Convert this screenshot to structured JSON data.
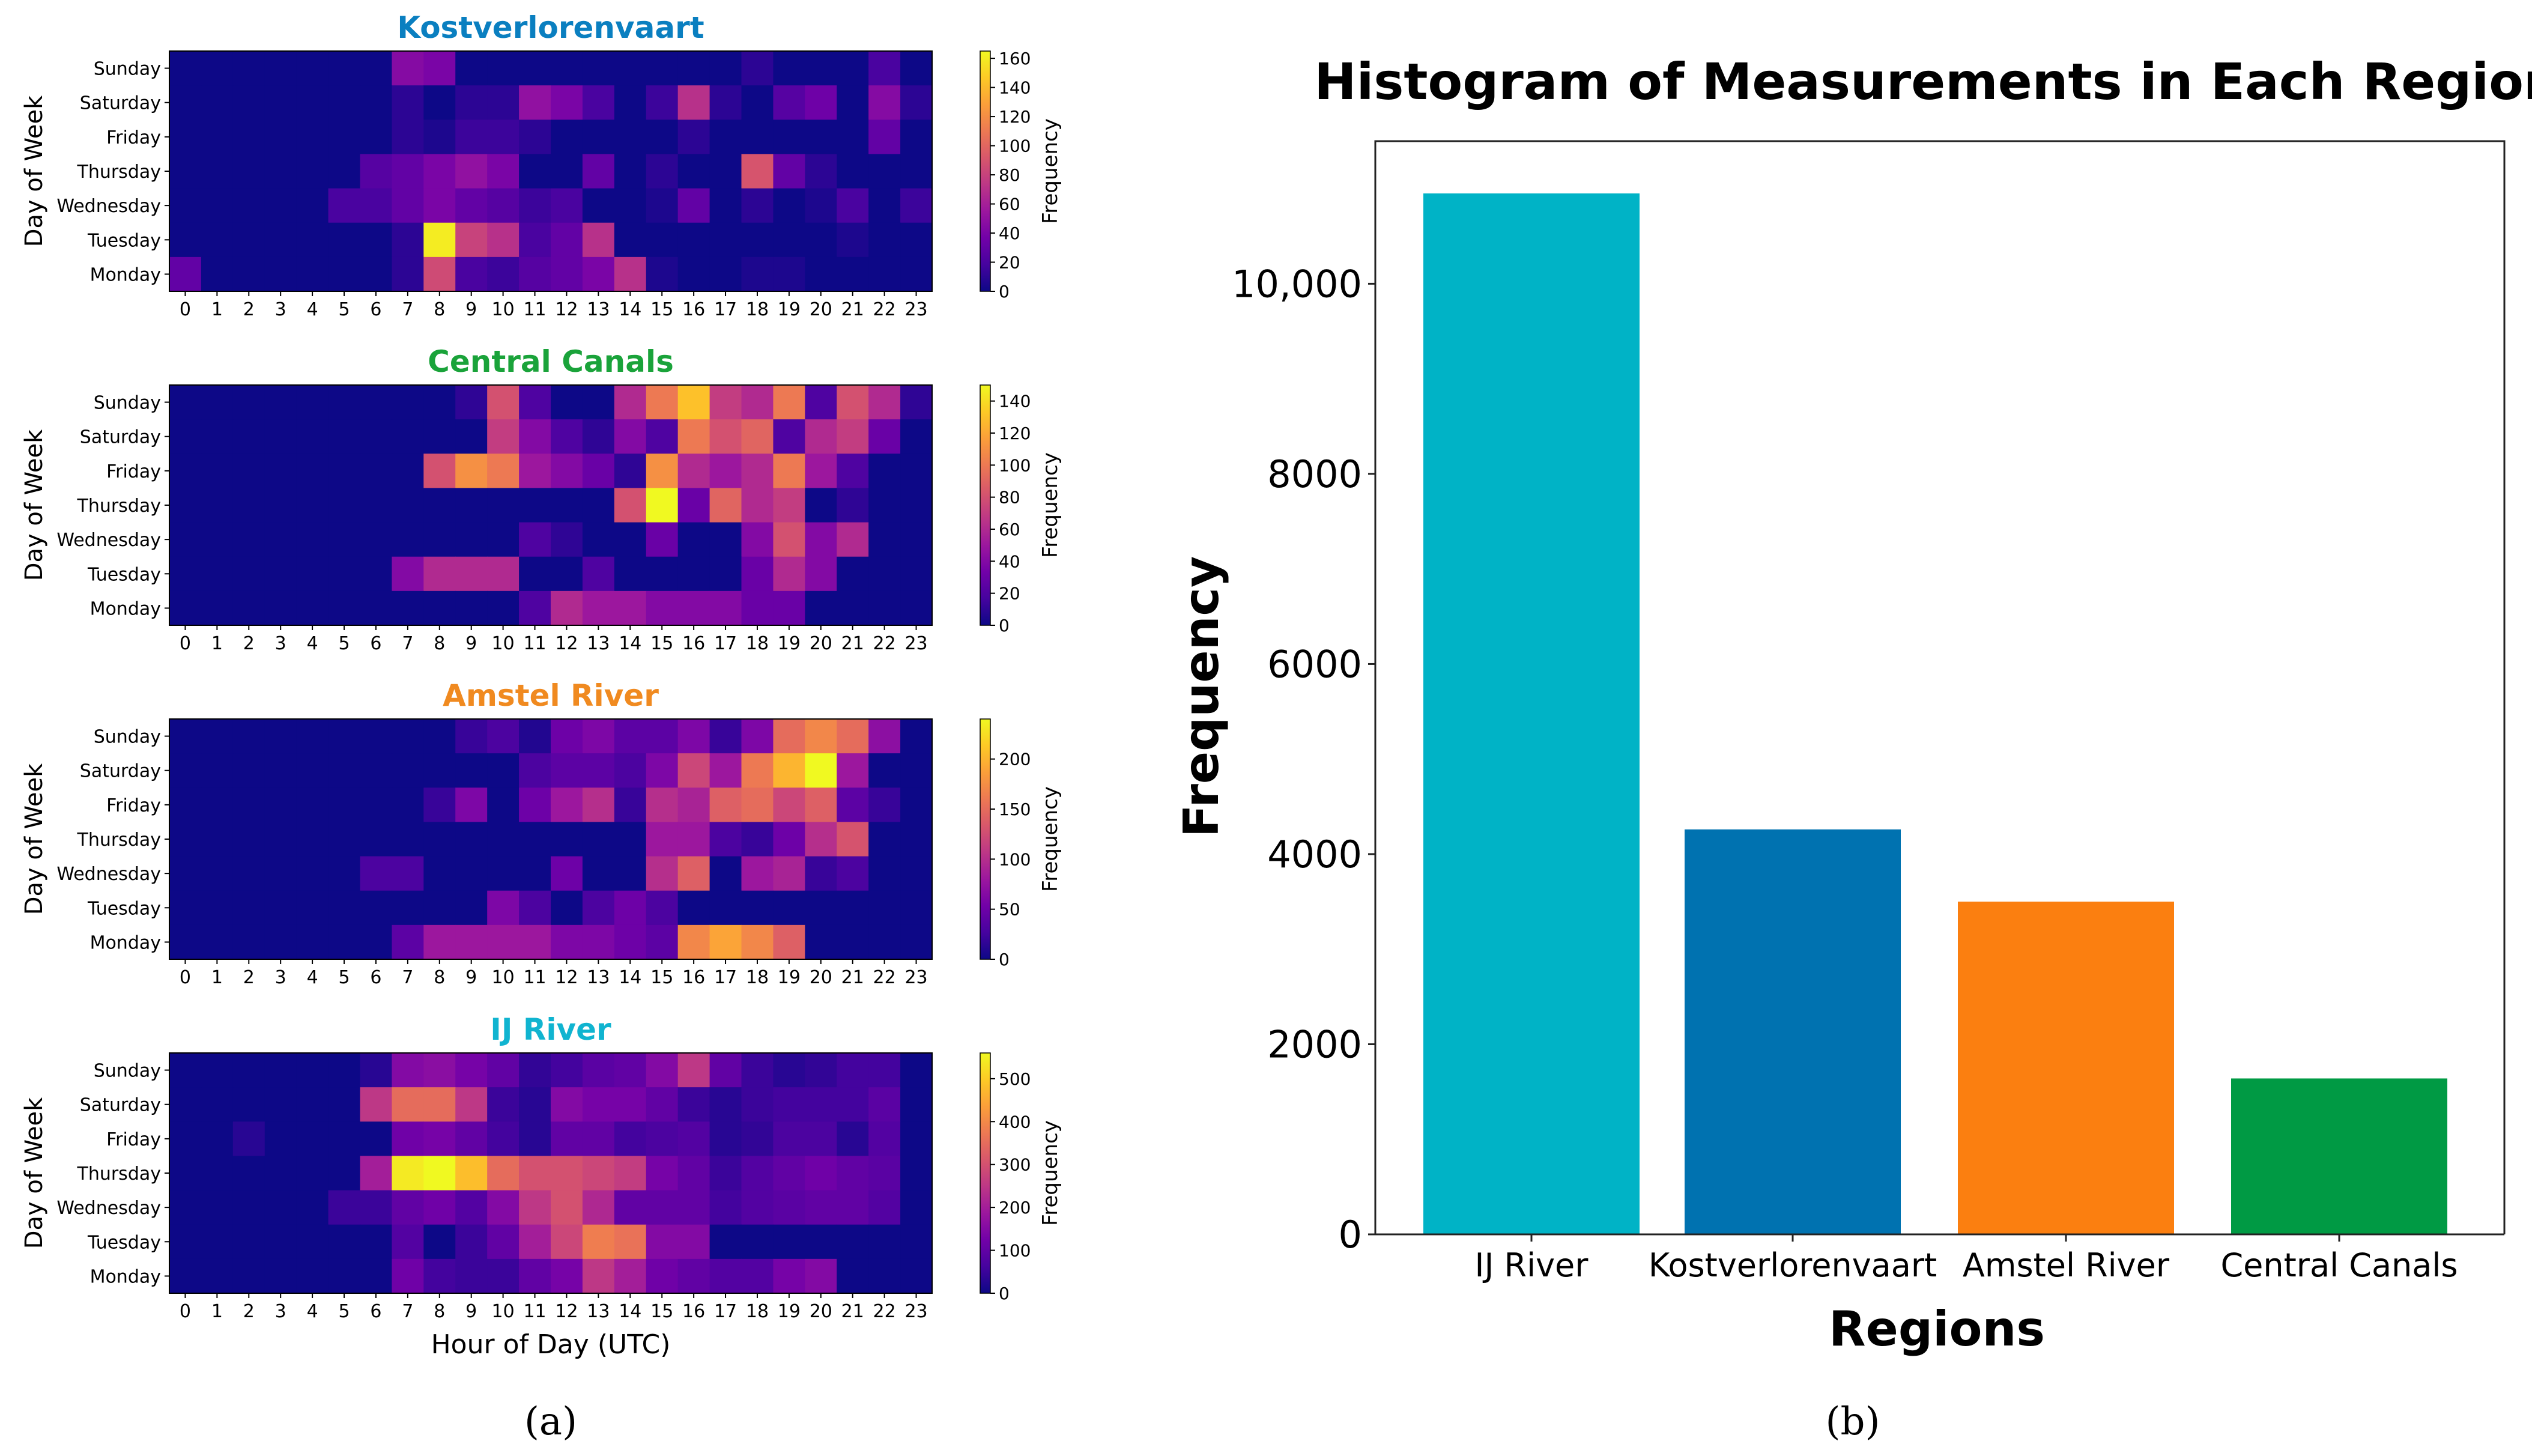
{
  "figure": {
    "captions": [
      "(a)",
      "(b)"
    ],
    "colorscale": [
      "#0d0887",
      "#46039f",
      "#7201a8",
      "#9c179e",
      "#bd3786",
      "#d8576b",
      "#ed7953",
      "#fb9f3a",
      "#fdca26",
      "#f0f921"
    ]
  },
  "panel_a": {
    "x_label": "Hour of Day (UTC)",
    "y_label": "Day of Week",
    "colorbar_label": "Frequency",
    "hours": [
      "0",
      "1",
      "2",
      "3",
      "4",
      "5",
      "6",
      "7",
      "8",
      "9",
      "10",
      "11",
      "12",
      "13",
      "14",
      "15",
      "16",
      "17",
      "18",
      "19",
      "20",
      "21",
      "22",
      "23"
    ],
    "days": [
      "Sunday",
      "Saturday",
      "Friday",
      "Thursday",
      "Wednesday",
      "Tuesday",
      "Monday"
    ]
  },
  "chart_data": [
    {
      "type": "heatmap",
      "title": "Kostverlorenvaart",
      "title_color": "#0a7fc0",
      "xlabel": "",
      "ylabel": "Day of Week",
      "colorbar_label": "Frequency",
      "zlim": [
        0,
        165
      ],
      "colorbar_ticks": [
        "0",
        "20",
        "40",
        "60",
        "80",
        "100",
        "120",
        "140",
        "160"
      ],
      "x": [
        "0",
        "1",
        "2",
        "3",
        "4",
        "5",
        "6",
        "7",
        "8",
        "9",
        "10",
        "11",
        "12",
        "13",
        "14",
        "15",
        "16",
        "17",
        "18",
        "19",
        "20",
        "21",
        "22",
        "23"
      ],
      "y": [
        "Sunday",
        "Saturday",
        "Friday",
        "Thursday",
        "Wednesday",
        "Tuesday",
        "Monday"
      ],
      "z": [
        [
          0,
          0,
          0,
          0,
          0,
          0,
          0,
          45,
          40,
          0,
          0,
          0,
          0,
          0,
          0,
          0,
          0,
          0,
          10,
          0,
          0,
          0,
          20,
          0
        ],
        [
          0,
          0,
          0,
          0,
          0,
          0,
          0,
          10,
          0,
          10,
          10,
          50,
          40,
          20,
          0,
          15,
          70,
          10,
          0,
          25,
          35,
          0,
          45,
          10
        ],
        [
          0,
          0,
          0,
          0,
          0,
          0,
          0,
          10,
          5,
          15,
          15,
          10,
          0,
          0,
          0,
          0,
          10,
          0,
          0,
          0,
          0,
          0,
          30,
          0
        ],
        [
          0,
          0,
          0,
          0,
          0,
          0,
          25,
          30,
          40,
          50,
          40,
          0,
          0,
          30,
          0,
          10,
          0,
          0,
          90,
          30,
          10,
          0,
          0,
          0
        ],
        [
          0,
          0,
          0,
          0,
          0,
          20,
          20,
          30,
          40,
          30,
          25,
          15,
          20,
          0,
          0,
          5,
          30,
          0,
          10,
          0,
          5,
          20,
          0,
          15
        ],
        [
          0,
          0,
          0,
          0,
          0,
          0,
          0,
          10,
          160,
          80,
          70,
          20,
          30,
          70,
          0,
          0,
          0,
          0,
          0,
          0,
          0,
          5,
          0,
          0
        ],
        [
          30,
          0,
          0,
          0,
          0,
          0,
          0,
          10,
          85,
          20,
          15,
          25,
          30,
          40,
          70,
          5,
          0,
          0,
          5,
          5,
          0,
          0,
          0,
          0
        ]
      ]
    },
    {
      "type": "heatmap",
      "title": "Central Canals",
      "title_color": "#1aa33a",
      "xlabel": "",
      "ylabel": "Day of Week",
      "colorbar_label": "Frequency",
      "zlim": [
        0,
        150
      ],
      "colorbar_ticks": [
        "0",
        "20",
        "40",
        "60",
        "80",
        "100",
        "120",
        "140"
      ],
      "x": [
        "0",
        "1",
        "2",
        "3",
        "4",
        "5",
        "6",
        "7",
        "8",
        "9",
        "10",
        "11",
        "12",
        "13",
        "14",
        "15",
        "16",
        "17",
        "18",
        "19",
        "20",
        "21",
        "22",
        "23"
      ],
      "y": [
        "Sunday",
        "Saturday",
        "Friday",
        "Thursday",
        "Wednesday",
        "Tuesday",
        "Monday"
      ],
      "z": [
        [
          0,
          0,
          0,
          0,
          0,
          0,
          0,
          0,
          0,
          10,
          80,
          20,
          0,
          0,
          60,
          100,
          130,
          70,
          60,
          100,
          20,
          80,
          60,
          10
        ],
        [
          0,
          0,
          0,
          0,
          0,
          0,
          0,
          0,
          0,
          0,
          70,
          40,
          20,
          10,
          40,
          20,
          100,
          80,
          90,
          20,
          60,
          70,
          30,
          0
        ],
        [
          0,
          0,
          0,
          0,
          0,
          0,
          0,
          0,
          80,
          110,
          100,
          50,
          40,
          30,
          10,
          110,
          60,
          50,
          60,
          100,
          50,
          20,
          0,
          0
        ],
        [
          0,
          0,
          0,
          0,
          0,
          0,
          0,
          0,
          0,
          0,
          0,
          0,
          0,
          0,
          80,
          150,
          30,
          90,
          60,
          70,
          0,
          10,
          0,
          0
        ],
        [
          0,
          0,
          0,
          0,
          0,
          0,
          0,
          0,
          0,
          0,
          0,
          20,
          10,
          0,
          0,
          30,
          0,
          0,
          40,
          80,
          40,
          60,
          0,
          0
        ],
        [
          0,
          0,
          0,
          0,
          0,
          0,
          0,
          40,
          60,
          60,
          60,
          0,
          0,
          20,
          0,
          0,
          0,
          0,
          30,
          60,
          40,
          0,
          0,
          0
        ],
        [
          0,
          0,
          0,
          0,
          0,
          0,
          0,
          0,
          0,
          0,
          0,
          20,
          60,
          50,
          50,
          40,
          40,
          40,
          30,
          30,
          0,
          0,
          0,
          0
        ]
      ]
    },
    {
      "type": "heatmap",
      "title": "Amstel River",
      "title_color": "#f08a20",
      "xlabel": "",
      "ylabel": "Day of Week",
      "colorbar_label": "Frequency",
      "zlim": [
        0,
        240
      ],
      "colorbar_ticks": [
        "0",
        "50",
        "100",
        "150",
        "200"
      ],
      "x": [
        "0",
        "1",
        "2",
        "3",
        "4",
        "5",
        "6",
        "7",
        "8",
        "9",
        "10",
        "11",
        "12",
        "13",
        "14",
        "15",
        "16",
        "17",
        "18",
        "19",
        "20",
        "21",
        "22",
        "23"
      ],
      "y": [
        "Sunday",
        "Saturday",
        "Friday",
        "Thursday",
        "Wednesday",
        "Tuesday",
        "Monday"
      ],
      "z": [
        [
          0,
          0,
          0,
          0,
          0,
          0,
          0,
          0,
          0,
          20,
          30,
          10,
          50,
          60,
          40,
          40,
          60,
          20,
          60,
          150,
          170,
          150,
          70,
          0
        ],
        [
          0,
          0,
          0,
          0,
          0,
          0,
          0,
          0,
          0,
          0,
          0,
          30,
          40,
          40,
          30,
          60,
          120,
          80,
          160,
          200,
          240,
          80,
          0,
          0
        ],
        [
          0,
          0,
          0,
          0,
          0,
          0,
          0,
          0,
          20,
          60,
          0,
          50,
          80,
          100,
          20,
          100,
          90,
          140,
          150,
          120,
          140,
          40,
          20,
          0
        ],
        [
          0,
          0,
          0,
          0,
          0,
          0,
          0,
          0,
          0,
          0,
          0,
          0,
          0,
          0,
          0,
          80,
          80,
          30,
          20,
          50,
          100,
          130,
          0,
          0
        ],
        [
          0,
          0,
          0,
          0,
          0,
          0,
          30,
          30,
          0,
          0,
          0,
          0,
          50,
          0,
          0,
          100,
          140,
          0,
          80,
          90,
          20,
          30,
          0,
          0
        ],
        [
          0,
          0,
          0,
          0,
          0,
          0,
          0,
          0,
          0,
          0,
          60,
          30,
          0,
          30,
          50,
          30,
          0,
          0,
          0,
          0,
          0,
          0,
          0,
          0
        ],
        [
          0,
          0,
          0,
          0,
          0,
          0,
          0,
          40,
          80,
          80,
          80,
          80,
          60,
          60,
          50,
          40,
          170,
          190,
          170,
          140,
          0,
          0,
          0,
          0
        ]
      ]
    },
    {
      "type": "heatmap",
      "title": "IJ River",
      "title_color": "#10b4d0",
      "xlabel": "Hour of Day (UTC)",
      "ylabel": "Day of Week",
      "colorbar_label": "Frequency",
      "zlim": [
        0,
        560
      ],
      "colorbar_ticks": [
        "0",
        "100",
        "200",
        "300",
        "400",
        "500"
      ],
      "x": [
        "0",
        "1",
        "2",
        "3",
        "4",
        "5",
        "6",
        "7",
        "8",
        "9",
        "10",
        "11",
        "12",
        "13",
        "14",
        "15",
        "16",
        "17",
        "18",
        "19",
        "20",
        "21",
        "22",
        "23"
      ],
      "y": [
        "Sunday",
        "Saturday",
        "Friday",
        "Thursday",
        "Wednesday",
        "Tuesday",
        "Monday"
      ],
      "z": [
        [
          0,
          0,
          0,
          0,
          0,
          0,
          30,
          150,
          160,
          130,
          100,
          40,
          60,
          90,
          100,
          150,
          250,
          100,
          50,
          30,
          40,
          60,
          60,
          0
        ],
        [
          0,
          0,
          0,
          0,
          0,
          0,
          250,
          350,
          350,
          250,
          50,
          30,
          150,
          130,
          130,
          100,
          50,
          30,
          50,
          60,
          60,
          60,
          90,
          0
        ],
        [
          0,
          0,
          30,
          0,
          0,
          0,
          0,
          120,
          130,
          100,
          60,
          30,
          100,
          100,
          60,
          70,
          80,
          30,
          40,
          70,
          70,
          30,
          80,
          0
        ],
        [
          0,
          0,
          0,
          0,
          0,
          0,
          200,
          540,
          560,
          480,
          350,
          300,
          300,
          280,
          260,
          130,
          100,
          50,
          80,
          100,
          120,
          100,
          90,
          0
        ],
        [
          0,
          0,
          0,
          0,
          0,
          50,
          50,
          100,
          120,
          80,
          150,
          250,
          300,
          220,
          100,
          100,
          100,
          60,
          80,
          90,
          100,
          100,
          80,
          0
        ],
        [
          0,
          0,
          0,
          0,
          0,
          0,
          0,
          80,
          0,
          50,
          100,
          200,
          280,
          380,
          360,
          150,
          150,
          0,
          0,
          0,
          0,
          0,
          0,
          0
        ],
        [
          0,
          0,
          0,
          0,
          0,
          0,
          0,
          120,
          60,
          50,
          50,
          100,
          130,
          250,
          200,
          120,
          100,
          80,
          80,
          130,
          150,
          0,
          0,
          0
        ]
      ]
    },
    {
      "type": "bar",
      "title": "Histogram of Measurements in Each Region",
      "xlabel": "Regions",
      "ylabel": "Frequency",
      "categories": [
        "IJ River",
        "Kostverlorenvaart",
        "Amstel River",
        "Central Canals"
      ],
      "values": [
        10950,
        4260,
        3500,
        1640
      ],
      "colors": [
        "#00b3c6",
        "#0072b0",
        "#fb7f10",
        "#009a44"
      ],
      "ylim": [
        0,
        11500
      ],
      "yticks": [
        0,
        2000,
        4000,
        6000,
        8000,
        10000
      ],
      "ytick_labels": [
        "0",
        "2000",
        "4000",
        "6000",
        "8000",
        "10,000"
      ]
    }
  ]
}
